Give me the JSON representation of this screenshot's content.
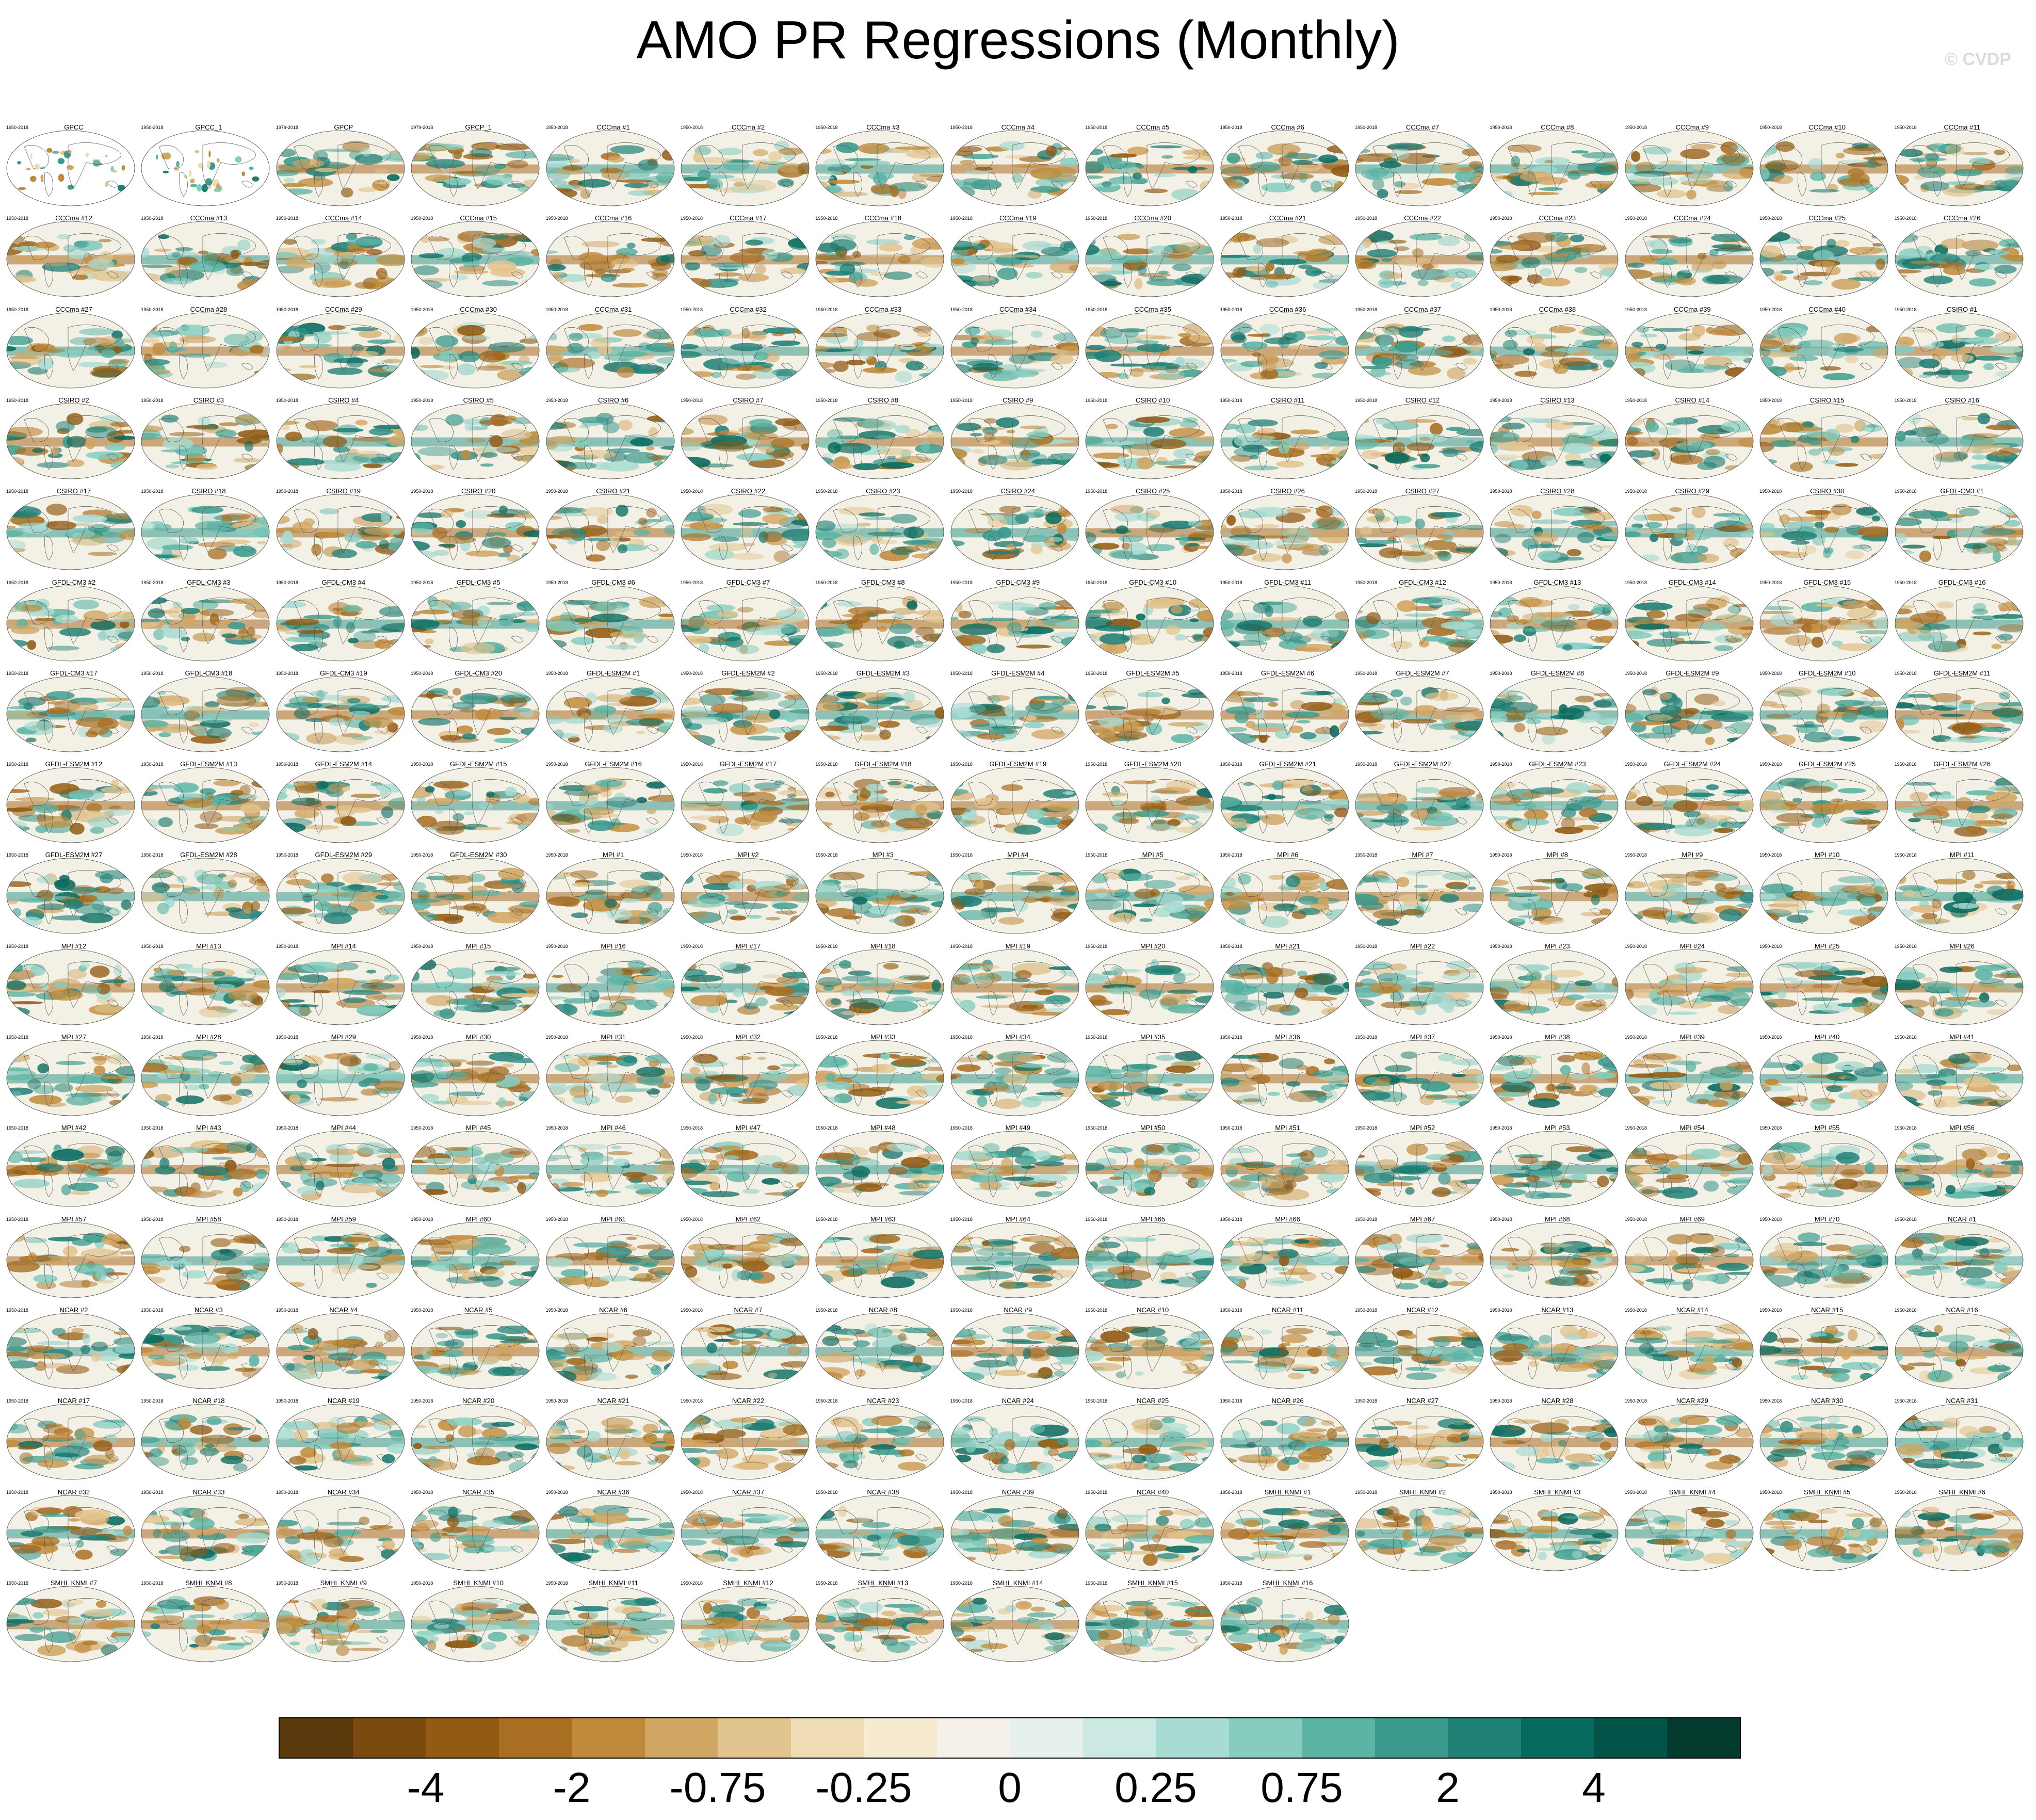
{
  "title": "AMO PR Regressions (Monthly)",
  "copyright": "© CVDP",
  "panels": [
    {
      "name": "GPCC",
      "years": "1950-2018",
      "style": "obs"
    },
    {
      "name": "GPCC_1",
      "years": "1950-2018",
      "style": "obs"
    },
    {
      "name": "GPCP",
      "years": "1979-2018"
    },
    {
      "name": "GPCP_1",
      "years": "1979-2018"
    },
    {
      "name": "CCCma #1",
      "years": "1950-2018"
    },
    {
      "name": "CCCma #2",
      "years": "1950-2018"
    },
    {
      "name": "CCCma #3",
      "years": "1950-2018"
    },
    {
      "name": "CCCma #4",
      "years": "1950-2018"
    },
    {
      "name": "CCCma #5",
      "years": "1950-2018"
    },
    {
      "name": "CCCma #6",
      "years": "1950-2018"
    },
    {
      "name": "CCCma #7",
      "years": "1950-2018"
    },
    {
      "name": "CCCma #8",
      "years": "1950-2018"
    },
    {
      "name": "CCCma #9",
      "years": "1950-2018"
    },
    {
      "name": "CCCma #10",
      "years": "1950-2018"
    },
    {
      "name": "CCCma #11",
      "years": "1950-2018"
    },
    {
      "name": "CCCma #12",
      "years": "1950-2018"
    },
    {
      "name": "CCCma #13",
      "years": "1950-2018"
    },
    {
      "name": "CCCma #14",
      "years": "1950-2018"
    },
    {
      "name": "CCCma #15",
      "years": "1950-2018"
    },
    {
      "name": "CCCma #16",
      "years": "1950-2018"
    },
    {
      "name": "CCCma #17",
      "years": "1950-2018"
    },
    {
      "name": "CCCma #18",
      "years": "1950-2018"
    },
    {
      "name": "CCCma #19",
      "years": "1950-2018"
    },
    {
      "name": "CCCma #20",
      "years": "1950-2018"
    },
    {
      "name": "CCCma #21",
      "years": "1950-2018"
    },
    {
      "name": "CCCma #22",
      "years": "1950-2018"
    },
    {
      "name": "CCCma #23",
      "years": "1950-2018"
    },
    {
      "name": "CCCma #24",
      "years": "1950-2018"
    },
    {
      "name": "CCCma #25",
      "years": "1950-2018"
    },
    {
      "name": "CCCma #26",
      "years": "1950-2018"
    },
    {
      "name": "CCCma #27",
      "years": "1950-2018"
    },
    {
      "name": "CCCma #28",
      "years": "1950-2018"
    },
    {
      "name": "CCCma #29",
      "years": "1950-2018"
    },
    {
      "name": "CCCma #30",
      "years": "1950-2018"
    },
    {
      "name": "CCCma #31",
      "years": "1950-2018"
    },
    {
      "name": "CCCma #32",
      "years": "1950-2018"
    },
    {
      "name": "CCCma #33",
      "years": "1950-2018"
    },
    {
      "name": "CCCma #34",
      "years": "1950-2018"
    },
    {
      "name": "CCCma #35",
      "years": "1950-2018"
    },
    {
      "name": "CCCma #36",
      "years": "1950-2018"
    },
    {
      "name": "CCCma #37",
      "years": "1950-2018"
    },
    {
      "name": "CCCma #38",
      "years": "1950-2018"
    },
    {
      "name": "CCCma #39",
      "years": "1950-2018"
    },
    {
      "name": "CCCma #40",
      "years": "1950-2018"
    },
    {
      "name": "CSIRO #1",
      "years": "1950-2018"
    },
    {
      "name": "CSIRO #2",
      "years": "1950-2018"
    },
    {
      "name": "CSIRO #3",
      "years": "1950-2018"
    },
    {
      "name": "CSIRO #4",
      "years": "1950-2018"
    },
    {
      "name": "CSIRO #5",
      "years": "1950-2018"
    },
    {
      "name": "CSIRO #6",
      "years": "1950-2018"
    },
    {
      "name": "CSIRO #7",
      "years": "1950-2018"
    },
    {
      "name": "CSIRO #8",
      "years": "1950-2018"
    },
    {
      "name": "CSIRO #9",
      "years": "1950-2018"
    },
    {
      "name": "CSIRO #10",
      "years": "1950-2018"
    },
    {
      "name": "CSIRO #11",
      "years": "1950-2018"
    },
    {
      "name": "CSIRO #12",
      "years": "1950-2018"
    },
    {
      "name": "CSIRO #13",
      "years": "1950-2018"
    },
    {
      "name": "CSIRO #14",
      "years": "1950-2018"
    },
    {
      "name": "CSIRO #15",
      "years": "1950-2018"
    },
    {
      "name": "CSIRO #16",
      "years": "1950-2018"
    },
    {
      "name": "CSIRO #17",
      "years": "1950-2018"
    },
    {
      "name": "CSIRO #18",
      "years": "1950-2018"
    },
    {
      "name": "CSIRO #19",
      "years": "1950-2018"
    },
    {
      "name": "CSIRO #20",
      "years": "1950-2018"
    },
    {
      "name": "CSIRO #21",
      "years": "1950-2018"
    },
    {
      "name": "CSIRO #22",
      "years": "1950-2018"
    },
    {
      "name": "CSIRO #23",
      "years": "1950-2018"
    },
    {
      "name": "CSIRO #24",
      "years": "1950-2018"
    },
    {
      "name": "CSIRO #25",
      "years": "1950-2018"
    },
    {
      "name": "CSIRO #26",
      "years": "1950-2018"
    },
    {
      "name": "CSIRO #27",
      "years": "1950-2018"
    },
    {
      "name": "CSIRO #28",
      "years": "1950-2018"
    },
    {
      "name": "CSIRO #29",
      "years": "1950-2018"
    },
    {
      "name": "CSIRO #30",
      "years": "1950-2018"
    },
    {
      "name": "GFDL-CM3 #1",
      "years": "1950-2018"
    },
    {
      "name": "GFDL-CM3 #2",
      "years": "1950-2018"
    },
    {
      "name": "GFDL-CM3 #3",
      "years": "1950-2018"
    },
    {
      "name": "GFDL-CM3 #4",
      "years": "1950-2018"
    },
    {
      "name": "GFDL-CM3 #5",
      "years": "1950-2018"
    },
    {
      "name": "GFDL-CM3 #6",
      "years": "1950-2018"
    },
    {
      "name": "GFDL-CM3 #7",
      "years": "1950-2018"
    },
    {
      "name": "GFDL-CM3 #8",
      "years": "1950-2018"
    },
    {
      "name": "GFDL-CM3 #9",
      "years": "1950-2018"
    },
    {
      "name": "GFDL-CM3 #10",
      "years": "1950-2018"
    },
    {
      "name": "GFDL-CM3 #11",
      "years": "1950-2018"
    },
    {
      "name": "GFDL-CM3 #12",
      "years": "1950-2018"
    },
    {
      "name": "GFDL-CM3 #13",
      "years": "1950-2018"
    },
    {
      "name": "GFDL-CM3 #14",
      "years": "1950-2018"
    },
    {
      "name": "GFDL-CM3 #15",
      "years": "1950-2018"
    },
    {
      "name": "GFDL-CM3 #16",
      "years": "1950-2018"
    },
    {
      "name": "GFDL-CM3 #17",
      "years": "1950-2018"
    },
    {
      "name": "GFDL-CM3 #18",
      "years": "1950-2018"
    },
    {
      "name": "GFDL-CM3 #19",
      "years": "1950-2018"
    },
    {
      "name": "GFDL-CM3 #20",
      "years": "1950-2018"
    },
    {
      "name": "GFDL-ESM2M #1",
      "years": "1950-2018"
    },
    {
      "name": "GFDL-ESM2M #2",
      "years": "1950-2018"
    },
    {
      "name": "GFDL-ESM2M #3",
      "years": "1950-2018"
    },
    {
      "name": "GFDL-ESM2M #4",
      "years": "1950-2018"
    },
    {
      "name": "GFDL-ESM2M #5",
      "years": "1950-2018"
    },
    {
      "name": "GFDL-ESM2M #6",
      "years": "1950-2018"
    },
    {
      "name": "GFDL-ESM2M #7",
      "years": "1950-2018"
    },
    {
      "name": "GFDL-ESM2M #8",
      "years": "1950-2018"
    },
    {
      "name": "GFDL-ESM2M #9",
      "years": "1950-2018"
    },
    {
      "name": "GFDL-ESM2M #10",
      "years": "1950-2018"
    },
    {
      "name": "GFDL-ESM2M #11",
      "years": "1950-2018"
    },
    {
      "name": "GFDL-ESM2M #12",
      "years": "1950-2018"
    },
    {
      "name": "GFDL-ESM2M #13",
      "years": "1950-2018"
    },
    {
      "name": "GFDL-ESM2M #14",
      "years": "1950-2018"
    },
    {
      "name": "GFDL-ESM2M #15",
      "years": "1950-2018"
    },
    {
      "name": "GFDL-ESM2M #16",
      "years": "1950-2018"
    },
    {
      "name": "GFDL-ESM2M #17",
      "years": "1950-2018"
    },
    {
      "name": "GFDL-ESM2M #18",
      "years": "1950-2018"
    },
    {
      "name": "GFDL-ESM2M #19",
      "years": "1950-2018"
    },
    {
      "name": "GFDL-ESM2M #20",
      "years": "1950-2018"
    },
    {
      "name": "GFDL-ESM2M #21",
      "years": "1950-2018"
    },
    {
      "name": "GFDL-ESM2M #22",
      "years": "1950-2018"
    },
    {
      "name": "GFDL-ESM2M #23",
      "years": "1950-2018"
    },
    {
      "name": "GFDL-ESM2M #24",
      "years": "1950-2018"
    },
    {
      "name": "GFDL-ESM2M #25",
      "years": "1950-2018"
    },
    {
      "name": "GFDL-ESM2M #26",
      "years": "1950-2018"
    },
    {
      "name": "GFDL-ESM2M #27",
      "years": "1950-2018"
    },
    {
      "name": "GFDL-ESM2M #28",
      "years": "1950-2018"
    },
    {
      "name": "GFDL-ESM2M #29",
      "years": "1950-2018"
    },
    {
      "name": "GFDL-ESM2M #30",
      "years": "1950-2018"
    },
    {
      "name": "MPI #1",
      "years": "1950-2018"
    },
    {
      "name": "MPI #2",
      "years": "1950-2018"
    },
    {
      "name": "MPI #3",
      "years": "1950-2018"
    },
    {
      "name": "MPI #4",
      "years": "1950-2018"
    },
    {
      "name": "MPI #5",
      "years": "1950-2018"
    },
    {
      "name": "MPI #6",
      "years": "1950-2018"
    },
    {
      "name": "MPI #7",
      "years": "1950-2018"
    },
    {
      "name": "MPI #8",
      "years": "1950-2018"
    },
    {
      "name": "MPI #9",
      "years": "1950-2018"
    },
    {
      "name": "MPI #10",
      "years": "1950-2018"
    },
    {
      "name": "MPI #11",
      "years": "1950-2018"
    },
    {
      "name": "MPI #12",
      "years": "1950-2018"
    },
    {
      "name": "MPI #13",
      "years": "1950-2018"
    },
    {
      "name": "MPI #14",
      "years": "1950-2018"
    },
    {
      "name": "MPI #15",
      "years": "1950-2018"
    },
    {
      "name": "MPI #16",
      "years": "1950-2018"
    },
    {
      "name": "MPI #17",
      "years": "1950-2018"
    },
    {
      "name": "MPI #18",
      "years": "1950-2018"
    },
    {
      "name": "MPI #19",
      "years": "1950-2018"
    },
    {
      "name": "MPI #20",
      "years": "1950-2018"
    },
    {
      "name": "MPI #21",
      "years": "1950-2018"
    },
    {
      "name": "MPI #22",
      "years": "1950-2018"
    },
    {
      "name": "MPI #23",
      "years": "1950-2018"
    },
    {
      "name": "MPI #24",
      "years": "1950-2018"
    },
    {
      "name": "MPI #25",
      "years": "1950-2018"
    },
    {
      "name": "MPI #26",
      "years": "1950-2018"
    },
    {
      "name": "MPI #27",
      "years": "1950-2018"
    },
    {
      "name": "MPI #28",
      "years": "1950-2018"
    },
    {
      "name": "MPI #29",
      "years": "1950-2018"
    },
    {
      "name": "MPI #30",
      "years": "1950-2018"
    },
    {
      "name": "MPI #31",
      "years": "1950-2018"
    },
    {
      "name": "MPI #32",
      "years": "1950-2018"
    },
    {
      "name": "MPI #33",
      "years": "1950-2018"
    },
    {
      "name": "MPI #34",
      "years": "1950-2018"
    },
    {
      "name": "MPI #35",
      "years": "1950-2018"
    },
    {
      "name": "MPI #36",
      "years": "1950-2018"
    },
    {
      "name": "MPI #37",
      "years": "1950-2018"
    },
    {
      "name": "MPI #38",
      "years": "1950-2018"
    },
    {
      "name": "MPI #39",
      "years": "1950-2018"
    },
    {
      "name": "MPI #40",
      "years": "1950-2018"
    },
    {
      "name": "MPI #41",
      "years": "1950-2018"
    },
    {
      "name": "MPI #42",
      "years": "1950-2018"
    },
    {
      "name": "MPI #43",
      "years": "1950-2018"
    },
    {
      "name": "MPI #44",
      "years": "1950-2018"
    },
    {
      "name": "MPI #45",
      "years": "1950-2018"
    },
    {
      "name": "MPI #46",
      "years": "1950-2018"
    },
    {
      "name": "MPI #47",
      "years": "1950-2018"
    },
    {
      "name": "MPI #48",
      "years": "1950-2018"
    },
    {
      "name": "MPI #49",
      "years": "1950-2018"
    },
    {
      "name": "MPI #50",
      "years": "1950-2018"
    },
    {
      "name": "MPI #51",
      "years": "1950-2018"
    },
    {
      "name": "MPI #52",
      "years": "1950-2018"
    },
    {
      "name": "MPI #53",
      "years": "1950-2018"
    },
    {
      "name": "MPI #54",
      "years": "1950-2018"
    },
    {
      "name": "MPI #55",
      "years": "1950-2018"
    },
    {
      "name": "MPI #56",
      "years": "1950-2018"
    },
    {
      "name": "MPI #57",
      "years": "1950-2018"
    },
    {
      "name": "MPI #58",
      "years": "1950-2018"
    },
    {
      "name": "MPI #59",
      "years": "1950-2018"
    },
    {
      "name": "MPI #60",
      "years": "1950-2018"
    },
    {
      "name": "MPI #61",
      "years": "1950-2018"
    },
    {
      "name": "MPI #62",
      "years": "1950-2018"
    },
    {
      "name": "MPI #63",
      "years": "1950-2018"
    },
    {
      "name": "MPI #64",
      "years": "1950-2018"
    },
    {
      "name": "MPI #65",
      "years": "1950-2018"
    },
    {
      "name": "MPI #66",
      "years": "1950-2018"
    },
    {
      "name": "MPI #67",
      "years": "1950-2018"
    },
    {
      "name": "MPI #68",
      "years": "1950-2018"
    },
    {
      "name": "MPI #69",
      "years": "1950-2018"
    },
    {
      "name": "MPI #70",
      "years": "1950-2018"
    },
    {
      "name": "NCAR #1",
      "years": "1950-2018"
    },
    {
      "name": "NCAR #2",
      "years": "1950-2018"
    },
    {
      "name": "NCAR #3",
      "years": "1950-2018"
    },
    {
      "name": "NCAR #4",
      "years": "1950-2018"
    },
    {
      "name": "NCAR #5",
      "years": "1950-2018"
    },
    {
      "name": "NCAR #6",
      "years": "1950-2018"
    },
    {
      "name": "NCAR #7",
      "years": "1950-2018"
    },
    {
      "name": "NCAR #8",
      "years": "1950-2018"
    },
    {
      "name": "NCAR #9",
      "years": "1950-2018"
    },
    {
      "name": "NCAR #10",
      "years": "1950-2018"
    },
    {
      "name": "NCAR #11",
      "years": "1950-2018"
    },
    {
      "name": "NCAR #12",
      "years": "1950-2018"
    },
    {
      "name": "NCAR #13",
      "years": "1950-2018"
    },
    {
      "name": "NCAR #14",
      "years": "1950-2018"
    },
    {
      "name": "NCAR #15",
      "years": "1950-2018"
    },
    {
      "name": "NCAR #16",
      "years": "1950-2018"
    },
    {
      "name": "NCAR #17",
      "years": "1950-2018"
    },
    {
      "name": "NCAR #18",
      "years": "1950-2018"
    },
    {
      "name": "NCAR #19",
      "years": "1950-2018"
    },
    {
      "name": "NCAR #20",
      "years": "1950-2018"
    },
    {
      "name": "NCAR #21",
      "years": "1950-2018"
    },
    {
      "name": "NCAR #22",
      "years": "1950-2018"
    },
    {
      "name": "NCAR #23",
      "years": "1950-2018"
    },
    {
      "name": "NCAR #24",
      "years": "1950-2018"
    },
    {
      "name": "NCAR #25",
      "years": "1950-2018"
    },
    {
      "name": "NCAR #26",
      "years": "1950-2018"
    },
    {
      "name": "NCAR #27",
      "years": "1950-2018"
    },
    {
      "name": "NCAR #28",
      "years": "1950-2018"
    },
    {
      "name": "NCAR #29",
      "years": "1950-2018"
    },
    {
      "name": "NCAR #30",
      "years": "1950-2018"
    },
    {
      "name": "NCAR #31",
      "years": "1950-2018"
    },
    {
      "name": "NCAR #32",
      "years": "1950-2018"
    },
    {
      "name": "NCAR #33",
      "years": "1950-2018"
    },
    {
      "name": "NCAR #34",
      "years": "1950-2018"
    },
    {
      "name": "NCAR #35",
      "years": "1950-2018"
    },
    {
      "name": "NCAR #36",
      "years": "1950-2018"
    },
    {
      "name": "NCAR #37",
      "years": "1950-2018"
    },
    {
      "name": "NCAR #38",
      "years": "1950-2018"
    },
    {
      "name": "NCAR #39",
      "years": "1950-2018"
    },
    {
      "name": "NCAR #40",
      "years": "1950-2018"
    },
    {
      "name": "SMHI_KNMI #1",
      "years": "1950-2018"
    },
    {
      "name": "SMHI_KNMI #2",
      "years": "1950-2018"
    },
    {
      "name": "SMHI_KNMI #3",
      "years": "1950-2018"
    },
    {
      "name": "SMHI_KNMI #4",
      "years": "1950-2018"
    },
    {
      "name": "SMHI_KNMI #5",
      "years": "1950-2018"
    },
    {
      "name": "SMHI_KNMI #6",
      "years": "1950-2018"
    },
    {
      "name": "SMHI_KNMI #7",
      "years": "1950-2018"
    },
    {
      "name": "SMHI_KNMI #8",
      "years": "1950-2018"
    },
    {
      "name": "SMHI_KNMI #9",
      "years": "1950-2018"
    },
    {
      "name": "SMHI_KNMI #10",
      "years": "1950-2018"
    },
    {
      "name": "SMHI_KNMI #11",
      "years": "1950-2018"
    },
    {
      "name": "SMHI_KNMI #12",
      "years": "1950-2018"
    },
    {
      "name": "SMHI_KNMI #13",
      "years": "1950-2018"
    },
    {
      "name": "SMHI_KNMI #14",
      "years": "1950-2018"
    },
    {
      "name": "SMHI_KNMI #15",
      "years": "1950-2018"
    },
    {
      "name": "SMHI_KNMI #16",
      "years": "1950-2018"
    }
  ],
  "colorbar": {
    "colors": [
      "#5a3a0c",
      "#7a4a0e",
      "#925a12",
      "#a86e22",
      "#bf8a3a",
      "#d1a562",
      "#e2c48e",
      "#efdcb4",
      "#f6ebcf",
      "#f5f1ea",
      "#e6f1ee",
      "#cde9e4",
      "#a8dbd2",
      "#86cdc0",
      "#5cb4a5",
      "#3a9a8c",
      "#1f8076",
      "#076a5e",
      "#005448",
      "#023a2e"
    ],
    "labels": [
      "-4",
      "-2",
      "-0.75",
      "-0.25",
      "0",
      "0.25",
      "0.75",
      "2",
      "4"
    ]
  }
}
